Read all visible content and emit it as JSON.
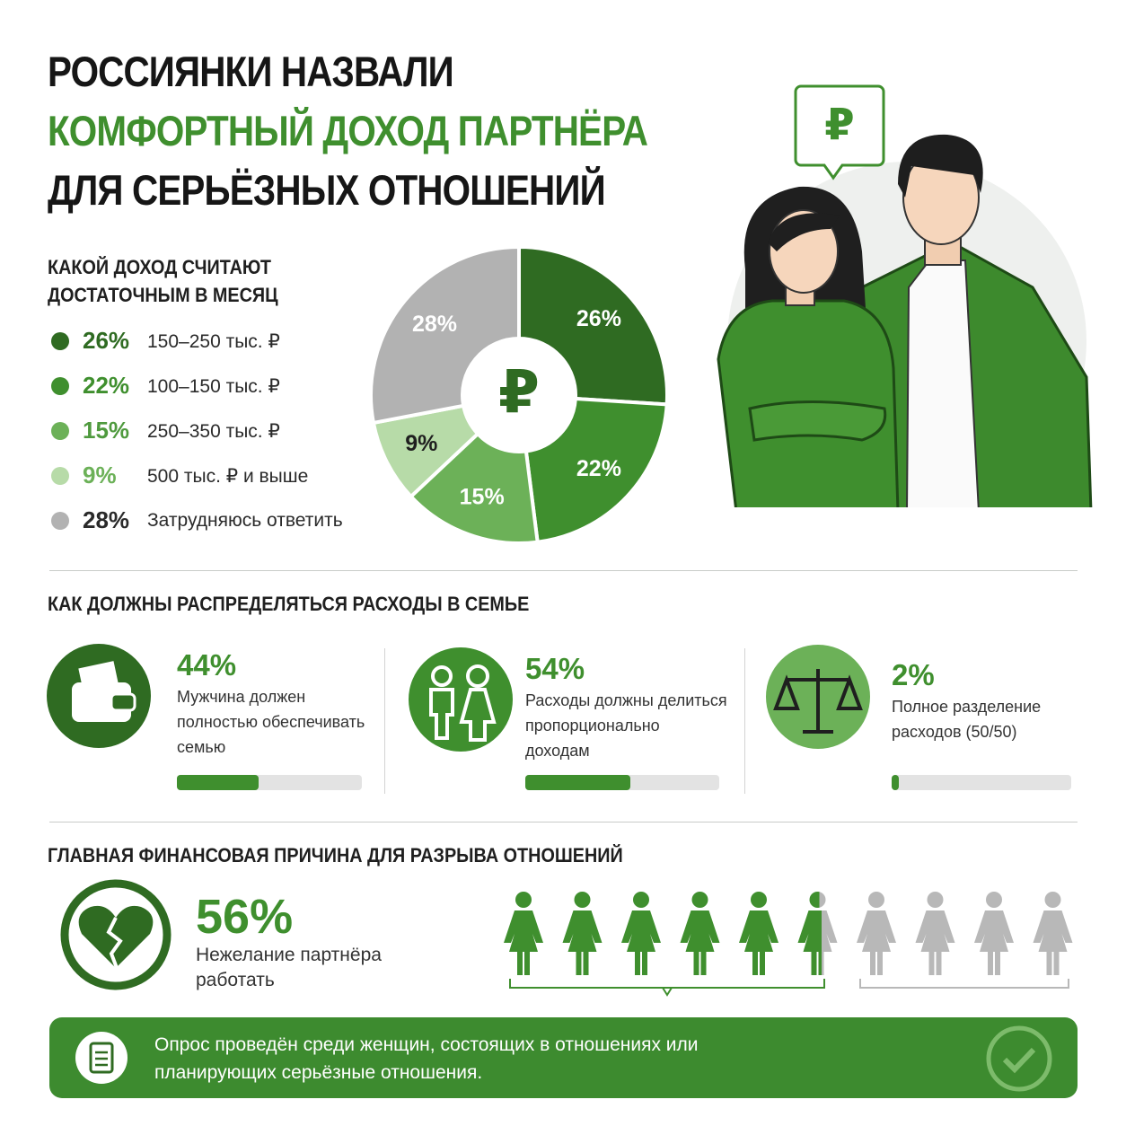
{
  "header": {
    "title_lines": [
      "РОССИЯНКИ НАЗВАЛИ",
      "КОМФОРТНЫЙ ДОХОД ПАРТНЁРА",
      "ДЛЯ СЕРЬЁЗНЫХ ОТНОШЕНИЙ"
    ]
  },
  "illustration": {
    "bubble_label": "₽"
  },
  "chart_data": {
    "type": "pie",
    "title": "КАКОЙ ДОХОД СЧИТАЮТ ДОСТАТОЧНЫМ В МЕСЯЦ",
    "categories": [
      "150–250 тыс. ₽",
      "100–150 тыс. ₽",
      "250–350 тыс. ₽",
      "500 тыс. ₽ и выше",
      "Затрудняюсь ответить"
    ],
    "values": [
      26,
      22,
      15,
      9,
      28
    ],
    "value_labels": [
      "26%",
      "22%",
      "15%",
      "9%",
      "28%"
    ],
    "colors": [
      "#2f6b22",
      "#3f8f2e",
      "#6cb158",
      "#b7dba8",
      "#b2b2b2"
    ],
    "label_colors": [
      "#2f6b22",
      "#3f8f2e",
      "#4f9a3e",
      "#6cb158",
      "#2a2a2a"
    ],
    "center_label": "₽"
  },
  "expenses": {
    "title": "КАК ДОЛЖНЫ РАСПРЕДЕЛЯТЬСЯ РАСХОДЫ В СЕМЬЕ",
    "items": [
      {
        "value": 44,
        "value_label": "44%",
        "text": "Мужчина должен полностью обеспечивать семью"
      },
      {
        "value": 54,
        "value_label": "54%",
        "text": "Расходы должны делиться пропорционально доходам"
      },
      {
        "value": 2,
        "value_label": "2%",
        "text": "Полное разделение расходов (50/50)"
      }
    ]
  },
  "breakup": {
    "title": "ГЛАВНАЯ ФИНАНСОВАЯ ПРИЧИНА ДЛЯ РАЗРЫВА ОТНОШЕНИЙ",
    "value": 56,
    "value_label": "56%",
    "text": "Нежелание партнёра работать"
  },
  "footer": {
    "text": "Опрос проведён среди женщин, состоящих в отношениях или планирующих серьёзные отношения."
  }
}
